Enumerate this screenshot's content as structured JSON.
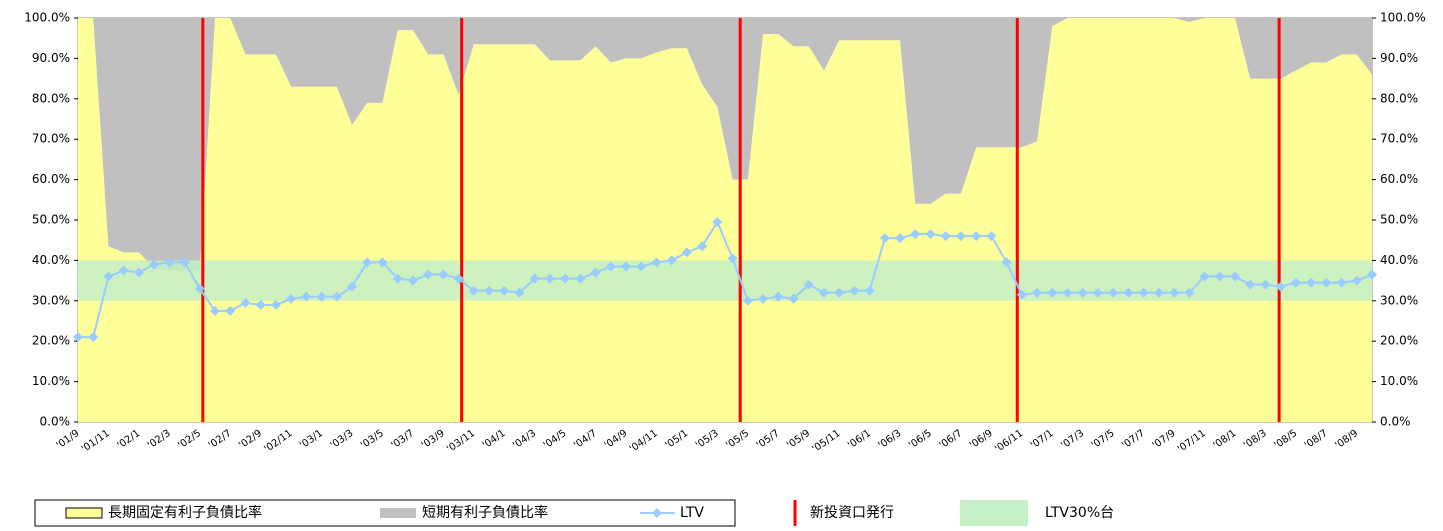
{
  "chart_data": {
    "type": "area_line",
    "categories": [
      "'01/9",
      null,
      "'01/11",
      null,
      "'02/1",
      null,
      "'02/3",
      null,
      "'02/5",
      null,
      "'02/7",
      null,
      "'02/9",
      null,
      "'02/11",
      null,
      "'03/1",
      null,
      "'03/3",
      null,
      "'03/5",
      null,
      "'03/7",
      null,
      "'03/9",
      null,
      "'03/11",
      null,
      "'04/1",
      null,
      "'04/3",
      null,
      "'04/5",
      null,
      "'04/7",
      null,
      "'04/9",
      null,
      "'04/11",
      null,
      "'05/1",
      null,
      "'05/3",
      null,
      "'05/5",
      null,
      "'05/7",
      null,
      "'05/9",
      null,
      "'05/11",
      null,
      "'06/1",
      null,
      "'06/3",
      null,
      "'06/5",
      null,
      "'06/7",
      null,
      "'06/9",
      null,
      "'06/11",
      null,
      "'07/1",
      null,
      "'07/3",
      null,
      "'07/5",
      null,
      "'07/7",
      null,
      "'07/9",
      null,
      "'07/11",
      null,
      "'08/1",
      null,
      "'08/3",
      null,
      "'08/5",
      null,
      "'08/7",
      null,
      "'08/9",
      null
    ],
    "series": [
      {
        "name": "長期固定有利子負債比率",
        "color": "#ffff99",
        "kind": "area",
        "values": [
          100,
          100,
          43.5,
          42,
          42,
          38,
          37.5,
          37.5,
          37.5,
          100,
          100,
          91,
          91,
          91,
          83,
          83,
          83,
          83,
          73.5,
          79,
          79,
          97,
          97,
          91,
          91,
          81,
          93.5,
          93.5,
          93.5,
          93.5,
          93.5,
          89.5,
          89.5,
          89.5,
          93,
          89,
          90,
          90,
          91.5,
          92.5,
          92.5,
          83.5,
          78,
          60,
          60,
          96,
          96,
          93,
          93,
          87,
          94.5,
          94.5,
          94.5,
          94.5,
          94.5,
          54,
          54,
          56.5,
          56.5,
          68,
          68,
          68,
          68,
          69.5,
          98,
          100,
          100,
          100,
          100,
          100,
          100,
          100,
          100,
          99,
          100,
          100,
          100,
          85,
          85,
          85,
          87,
          89,
          89,
          91,
          91,
          86
        ]
      },
      {
        "name": "短期有利子負債比率",
        "color": "#c0c0c0",
        "kind": "area",
        "values": [
          0,
          0,
          56.5,
          58,
          58,
          62,
          62.5,
          62.5,
          62.5,
          0,
          0,
          9,
          9,
          9,
          17,
          17,
          17,
          17,
          26.5,
          21,
          21,
          3,
          3,
          9,
          9,
          19,
          6.5,
          6.5,
          6.5,
          6.5,
          6.5,
          10.5,
          10.5,
          10.5,
          7,
          11,
          10,
          10,
          8.5,
          7.5,
          7.5,
          16.5,
          22,
          40,
          40,
          4,
          4,
          7,
          7,
          13,
          5.5,
          5.5,
          5.5,
          5.5,
          5.5,
          46,
          46,
          43.5,
          43.5,
          32,
          32,
          32,
          32,
          30.5,
          2,
          0,
          0,
          0,
          0,
          0,
          0,
          0,
          0,
          1,
          0,
          0,
          0,
          15,
          15,
          15,
          13,
          11,
          11,
          9,
          9,
          14
        ]
      },
      {
        "name": "LTV",
        "color": "#99ccff",
        "kind": "line",
        "values": [
          21,
          21,
          36,
          37.5,
          37,
          39,
          39.5,
          39.5,
          33,
          27.5,
          27.5,
          29.5,
          29,
          29,
          30.5,
          31,
          31,
          31,
          33.5,
          39.5,
          39.5,
          35.5,
          35,
          36.5,
          36.5,
          35.5,
          32.5,
          32.5,
          32.5,
          32,
          35.5,
          35.5,
          35.5,
          35.5,
          37,
          38.5,
          38.5,
          38.5,
          39.5,
          40,
          42,
          43.5,
          49.5,
          40.5,
          30,
          30.5,
          31,
          30.5,
          34,
          32,
          32,
          32.5,
          32.5,
          45.5,
          45.5,
          46.5,
          46.5,
          46,
          46,
          46,
          46,
          39.5,
          31.5,
          32,
          32,
          32,
          32,
          32,
          32,
          32,
          32,
          32,
          32,
          32,
          36,
          36,
          36,
          34,
          34,
          33.5,
          34.5,
          34.5,
          34.5,
          34.5,
          35,
          36.5
        ]
      }
    ],
    "events": {
      "name": "新投資口発行",
      "color": "#ff0000",
      "x": [
        8.2,
        25.2,
        43.5,
        61.7,
        78.9
      ]
    },
    "band": {
      "name": "LTV30%台",
      "color": "#c6f0c6",
      "range": [
        30,
        40
      ]
    },
    "ylim": [
      0,
      100
    ],
    "yticks": [
      {
        "value": 0,
        "label": "0.0%"
      },
      {
        "value": 10,
        "label": "10.0%"
      },
      {
        "value": 20,
        "label": "20.0%"
      },
      {
        "value": 30,
        "label": "30.0%"
      },
      {
        "value": 40,
        "label": "40.0%"
      },
      {
        "value": 50,
        "label": "50.0%"
      },
      {
        "value": 60,
        "label": "60.0%"
      },
      {
        "value": 70,
        "label": "70.0%"
      },
      {
        "value": 80,
        "label": "80.0%"
      },
      {
        "value": 90,
        "label": "90.0%"
      },
      {
        "value": 100,
        "label": "100.0%"
      }
    ]
  }
}
